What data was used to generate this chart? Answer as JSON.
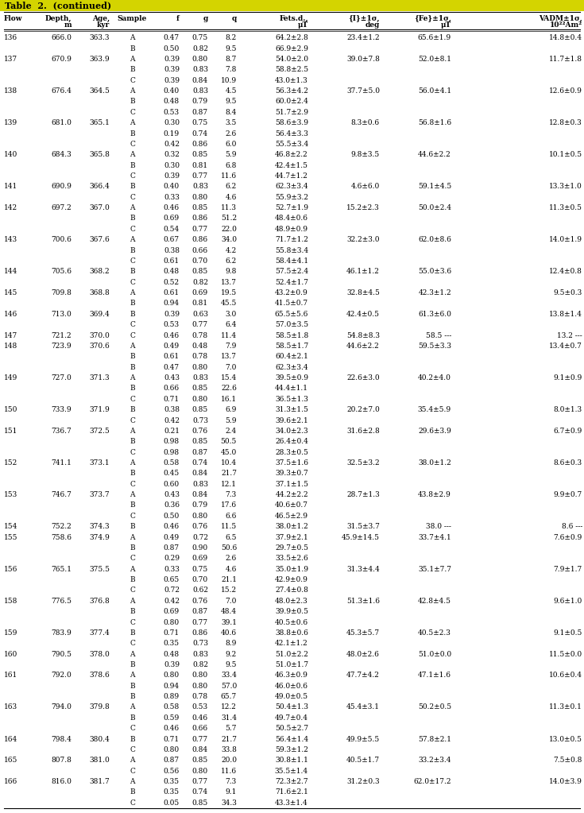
{
  "title": "Table  2.  (continued)",
  "headers_line1": [
    "Flow",
    "Depth,",
    "Age,",
    "Sample",
    "f",
    "g",
    "q",
    "Fets.d.,",
    "{I}±1σ,",
    "{Fe}±1σ,",
    "VADM±1σ,"
  ],
  "headers_line2": [
    "",
    "m",
    "kyr",
    "",
    "",
    "",
    "",
    "μT",
    "deg",
    "μT",
    "10²²Am²"
  ],
  "rows": [
    [
      "136",
      "666.0",
      "363.3",
      "A",
      "0.47",
      "0.75",
      "8.2",
      "64.2±2.8",
      "23.4±1.2",
      "65.6±1.9",
      "14.8±0.4"
    ],
    [
      "",
      "",
      "",
      "B",
      "0.50",
      "0.82",
      "9.5",
      "66.9±2.9",
      "",
      "",
      ""
    ],
    [
      "137",
      "670.9",
      "363.9",
      "A",
      "0.39",
      "0.80",
      "8.7",
      "54.0±2.0",
      "39.0±7.8",
      "52.0±8.1",
      "11.7±1.8"
    ],
    [
      "",
      "",
      "",
      "B",
      "0.39",
      "0.83",
      "7.8",
      "58.8±2.5",
      "",
      "",
      ""
    ],
    [
      "",
      "",
      "",
      "C",
      "0.39",
      "0.84",
      "10.9",
      "43.0±1.3",
      "",
      "",
      ""
    ],
    [
      "138",
      "676.4",
      "364.5",
      "A",
      "0.40",
      "0.83",
      "4.5",
      "56.3±4.2",
      "37.7±5.0",
      "56.0±4.1",
      "12.6±0.9"
    ],
    [
      "",
      "",
      "",
      "B",
      "0.48",
      "0.79",
      "9.5",
      "60.0±2.4",
      "",
      "",
      ""
    ],
    [
      "",
      "",
      "",
      "C",
      "0.53",
      "0.87",
      "8.4",
      "51.7±2.9",
      "",
      "",
      ""
    ],
    [
      "139",
      "681.0",
      "365.1",
      "A",
      "0.30",
      "0.75",
      "3.5",
      "58.6±3.9",
      "8.3±0.6",
      "56.8±1.6",
      "12.8±0.3"
    ],
    [
      "",
      "",
      "",
      "B",
      "0.19",
      "0.74",
      "2.6",
      "56.4±3.3",
      "",
      "",
      ""
    ],
    [
      "",
      "",
      "",
      "C",
      "0.42",
      "0.86",
      "6.0",
      "55.5±3.4",
      "",
      "",
      ""
    ],
    [
      "140",
      "684.3",
      "365.8",
      "A",
      "0.32",
      "0.85",
      "5.9",
      "46.8±2.2",
      "9.8±3.5",
      "44.6±2.2",
      "10.1±0.5"
    ],
    [
      "",
      "",
      "",
      "B",
      "0.30",
      "0.81",
      "6.8",
      "42.4±1.5",
      "",
      "",
      ""
    ],
    [
      "",
      "",
      "",
      "C",
      "0.39",
      "0.77",
      "11.6",
      "44.7±1.2",
      "",
      "",
      ""
    ],
    [
      "141",
      "690.9",
      "366.4",
      "B",
      "0.40",
      "0.83",
      "6.2",
      "62.3±3.4",
      "4.6±6.0",
      "59.1±4.5",
      "13.3±1.0"
    ],
    [
      "",
      "",
      "",
      "C",
      "0.33",
      "0.80",
      "4.6",
      "55.9±3.2",
      "",
      "",
      ""
    ],
    [
      "142",
      "697.2",
      "367.0",
      "A",
      "0.46",
      "0.85",
      "11.3",
      "52.7±1.9",
      "15.2±2.3",
      "50.0±2.4",
      "11.3±0.5"
    ],
    [
      "",
      "",
      "",
      "B",
      "0.69",
      "0.86",
      "51.2",
      "48.4±0.6",
      "",
      "",
      ""
    ],
    [
      "",
      "",
      "",
      "C",
      "0.54",
      "0.77",
      "22.0",
      "48.9±0.9",
      "",
      "",
      ""
    ],
    [
      "143",
      "700.6",
      "367.6",
      "A",
      "0.67",
      "0.86",
      "34.0",
      "71.7±1.2",
      "32.2±3.0",
      "62.0±8.6",
      "14.0±1.9"
    ],
    [
      "",
      "",
      "",
      "B",
      "0.38",
      "0.66",
      "4.2",
      "55.8±3.4",
      "",
      "",
      ""
    ],
    [
      "",
      "",
      "",
      "C",
      "0.61",
      "0.70",
      "6.2",
      "58.4±4.1",
      "",
      "",
      ""
    ],
    [
      "144",
      "705.6",
      "368.2",
      "B",
      "0.48",
      "0.85",
      "9.8",
      "57.5±2.4",
      "46.1±1.2",
      "55.0±3.6",
      "12.4±0.8"
    ],
    [
      "",
      "",
      "",
      "C",
      "0.52",
      "0.82",
      "13.7",
      "52.4±1.7",
      "",
      "",
      ""
    ],
    [
      "145",
      "709.8",
      "368.8",
      "A",
      "0.61",
      "0.69",
      "19.5",
      "43.2±0.9",
      "32.8±4.5",
      "42.3±1.2",
      "9.5±0.3"
    ],
    [
      "",
      "",
      "",
      "B",
      "0.94",
      "0.81",
      "45.5",
      "41.5±0.7",
      "",
      "",
      ""
    ],
    [
      "146",
      "713.0",
      "369.4",
      "B",
      "0.39",
      "0.63",
      "3.0",
      "65.5±5.6",
      "42.4±0.5",
      "61.3±6.0",
      "13.8±1.4"
    ],
    [
      "",
      "",
      "",
      "C",
      "0.53",
      "0.77",
      "6.4",
      "57.0±3.5",
      "",
      "",
      ""
    ],
    [
      "147",
      "721.2",
      "370.0",
      "C",
      "0.46",
      "0.78",
      "11.4",
      "58.5±1.8",
      "54.8±8.3",
      "58.5 ---",
      "13.2 ---"
    ],
    [
      "148",
      "723.9",
      "370.6",
      "A",
      "0.49",
      "0.48",
      "7.9",
      "58.5±1.7",
      "44.6±2.2",
      "59.5±3.3",
      "13.4±0.7"
    ],
    [
      "",
      "",
      "",
      "B",
      "0.61",
      "0.78",
      "13.7",
      "60.4±2.1",
      "",
      "",
      ""
    ],
    [
      "",
      "",
      "",
      "B",
      "0.47",
      "0.80",
      "7.0",
      "62.3±3.4",
      "",
      "",
      ""
    ],
    [
      "149",
      "727.0",
      "371.3",
      "A",
      "0.43",
      "0.83",
      "15.4",
      "39.5±0.9",
      "22.6±3.0",
      "40.2±4.0",
      "9.1±0.9"
    ],
    [
      "",
      "",
      "",
      "B",
      "0.66",
      "0.85",
      "22.6",
      "44.4±1.1",
      "",
      "",
      ""
    ],
    [
      "",
      "",
      "",
      "C",
      "0.71",
      "0.80",
      "16.1",
      "36.5±1.3",
      "",
      "",
      ""
    ],
    [
      "150",
      "733.9",
      "371.9",
      "B",
      "0.38",
      "0.85",
      "6.9",
      "31.3±1.5",
      "20.2±7.0",
      "35.4±5.9",
      "8.0±1.3"
    ],
    [
      "",
      "",
      "",
      "C",
      "0.42",
      "0.73",
      "5.9",
      "39.6±2.1",
      "",
      "",
      ""
    ],
    [
      "151",
      "736.7",
      "372.5",
      "A",
      "0.21",
      "0.76",
      "2.4",
      "34.0±2.3",
      "31.6±2.8",
      "29.6±3.9",
      "6.7±0.9"
    ],
    [
      "",
      "",
      "",
      "B",
      "0.98",
      "0.85",
      "50.5",
      "26.4±0.4",
      "",
      "",
      ""
    ],
    [
      "",
      "",
      "",
      "C",
      "0.98",
      "0.87",
      "45.0",
      "28.3±0.5",
      "",
      "",
      ""
    ],
    [
      "152",
      "741.1",
      "373.1",
      "A",
      "0.58",
      "0.74",
      "10.4",
      "37.5±1.6",
      "32.5±3.2",
      "38.0±1.2",
      "8.6±0.3"
    ],
    [
      "",
      "",
      "",
      "B",
      "0.45",
      "0.84",
      "21.7",
      "39.3±0.7",
      "",
      "",
      ""
    ],
    [
      "",
      "",
      "",
      "C",
      "0.60",
      "0.83",
      "12.1",
      "37.1±1.5",
      "",
      "",
      ""
    ],
    [
      "153",
      "746.7",
      "373.7",
      "A",
      "0.43",
      "0.84",
      "7.3",
      "44.2±2.2",
      "28.7±1.3",
      "43.8±2.9",
      "9.9±0.7"
    ],
    [
      "",
      "",
      "",
      "B",
      "0.36",
      "0.79",
      "17.6",
      "40.6±0.7",
      "",
      "",
      ""
    ],
    [
      "",
      "",
      "",
      "C",
      "0.50",
      "0.80",
      "6.6",
      "46.5±2.9",
      "",
      "",
      ""
    ],
    [
      "154",
      "752.2",
      "374.3",
      "B",
      "0.46",
      "0.76",
      "11.5",
      "38.0±1.2",
      "31.5±3.7",
      "38.0 ---",
      "8.6 ---"
    ],
    [
      "155",
      "758.6",
      "374.9",
      "A",
      "0.49",
      "0.72",
      "6.5",
      "37.9±2.1",
      "45.9±14.5",
      "33.7±4.1",
      "7.6±0.9"
    ],
    [
      "",
      "",
      "",
      "B",
      "0.87",
      "0.90",
      "50.6",
      "29.7±0.5",
      "",
      "",
      ""
    ],
    [
      "",
      "",
      "",
      "C",
      "0.29",
      "0.69",
      "2.6",
      "33.5±2.6",
      "",
      "",
      ""
    ],
    [
      "156",
      "765.1",
      "375.5",
      "A",
      "0.33",
      "0.75",
      "4.6",
      "35.0±1.9",
      "31.3±4.4",
      "35.1±7.7",
      "7.9±1.7"
    ],
    [
      "",
      "",
      "",
      "B",
      "0.65",
      "0.70",
      "21.1",
      "42.9±0.9",
      "",
      "",
      ""
    ],
    [
      "",
      "",
      "",
      "C",
      "0.72",
      "0.62",
      "15.2",
      "27.4±0.8",
      "",
      "",
      ""
    ],
    [
      "158",
      "776.5",
      "376.8",
      "A",
      "0.42",
      "0.76",
      "7.0",
      "48.0±2.3",
      "51.3±1.6",
      "42.8±4.5",
      "9.6±1.0"
    ],
    [
      "",
      "",
      "",
      "B",
      "0.69",
      "0.87",
      "48.4",
      "39.9±0.5",
      "",
      "",
      ""
    ],
    [
      "",
      "",
      "",
      "C",
      "0.80",
      "0.77",
      "39.1",
      "40.5±0.6",
      "",
      "",
      ""
    ],
    [
      "159",
      "783.9",
      "377.4",
      "B",
      "0.71",
      "0.86",
      "40.6",
      "38.8±0.6",
      "45.3±5.7",
      "40.5±2.3",
      "9.1±0.5"
    ],
    [
      "",
      "",
      "",
      "C",
      "0.35",
      "0.73",
      "8.9",
      "42.1±1.2",
      "",
      "",
      ""
    ],
    [
      "160",
      "790.5",
      "378.0",
      "A",
      "0.48",
      "0.83",
      "9.2",
      "51.0±2.2",
      "48.0±2.6",
      "51.0±0.0",
      "11.5±0.0"
    ],
    [
      "",
      "",
      "",
      "B",
      "0.39",
      "0.82",
      "9.5",
      "51.0±1.7",
      "",
      "",
      ""
    ],
    [
      "161",
      "792.0",
      "378.6",
      "A",
      "0.80",
      "0.80",
      "33.4",
      "46.3±0.9",
      "47.7±4.2",
      "47.1±1.6",
      "10.6±0.4"
    ],
    [
      "",
      "",
      "",
      "B",
      "0.94",
      "0.80",
      "57.0",
      "46.0±0.6",
      "",
      "",
      ""
    ],
    [
      "",
      "",
      "",
      "B",
      "0.89",
      "0.78",
      "65.7",
      "49.0±0.5",
      "",
      "",
      ""
    ],
    [
      "163",
      "794.0",
      "379.8",
      "A",
      "0.58",
      "0.53",
      "12.2",
      "50.4±1.3",
      "45.4±3.1",
      "50.2±0.5",
      "11.3±0.1"
    ],
    [
      "",
      "",
      "",
      "B",
      "0.59",
      "0.46",
      "31.4",
      "49.7±0.4",
      "",
      "",
      ""
    ],
    [
      "",
      "",
      "",
      "C",
      "0.46",
      "0.66",
      "5.7",
      "50.5±2.7",
      "",
      "",
      ""
    ],
    [
      "164",
      "798.4",
      "380.4",
      "B",
      "0.71",
      "0.77",
      "21.7",
      "56.4±1.4",
      "49.9±5.5",
      "57.8±2.1",
      "13.0±0.5"
    ],
    [
      "",
      "",
      "",
      "C",
      "0.80",
      "0.84",
      "33.8",
      "59.3±1.2",
      "",
      "",
      ""
    ],
    [
      "165",
      "807.8",
      "381.0",
      "A",
      "0.87",
      "0.85",
      "20.0",
      "30.8±1.1",
      "40.5±1.7",
      "33.2±3.4",
      "7.5±0.8"
    ],
    [
      "",
      "",
      "",
      "C",
      "0.56",
      "0.80",
      "11.6",
      "35.5±1.4",
      "",
      "",
      ""
    ],
    [
      "166",
      "816.0",
      "381.7",
      "A",
      "0.35",
      "0.77",
      "7.3",
      "72.3±2.7",
      "31.2±0.3",
      "62.0±17.2",
      "14.0±3.9"
    ],
    [
      "",
      "",
      "",
      "B",
      "0.35",
      "0.74",
      "9.1",
      "71.6±2.1",
      "",
      "",
      ""
    ],
    [
      "",
      "",
      "",
      "C",
      "0.05",
      "0.85",
      "34.3",
      "43.3±1.4",
      "",
      "",
      ""
    ]
  ],
  "background_color": "#ffffff",
  "text_color": "#000000",
  "title_text": "Table  2.  (continued)",
  "title_bg": "#c8c800",
  "fontsize": 6.5
}
